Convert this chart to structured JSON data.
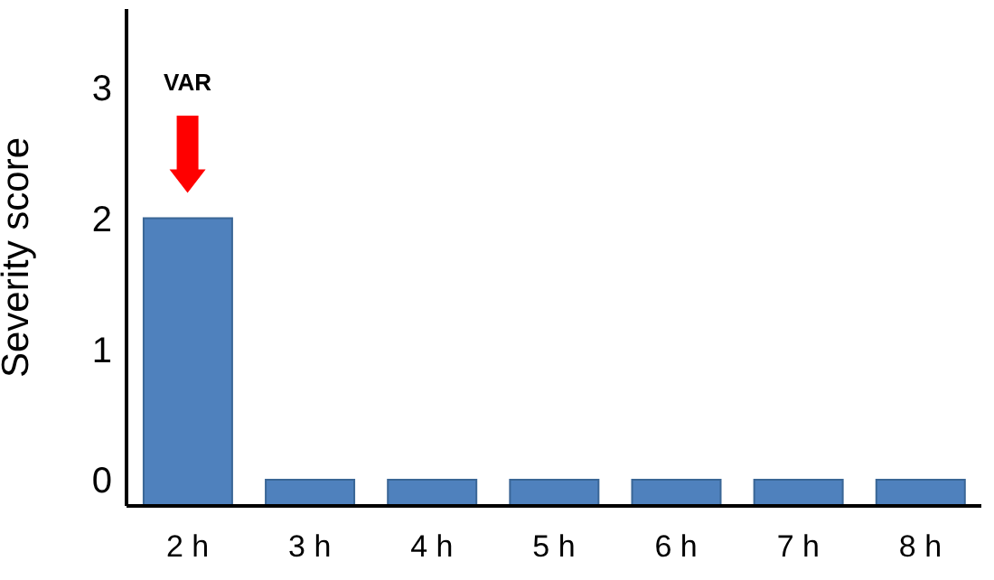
{
  "chart_data": {
    "type": "bar",
    "ylabel": "Severity score",
    "categories": [
      "2 h",
      "3 h",
      "4 h",
      "5 h",
      "6 h",
      "7 h",
      "8 h"
    ],
    "base": [
      -0.2,
      -0.2,
      -0.2,
      -0.2,
      -0.2,
      -0.2,
      -0.2
    ],
    "values": [
      2.2,
      0.2,
      0.2,
      0.2,
      0.2,
      0.2,
      0.2
    ],
    "color": "#4f81bd",
    "ylim": [
      -0.2,
      3.6
    ],
    "yticks": [
      0,
      1,
      2,
      3
    ],
    "annotations": [
      "VAR"
    ]
  }
}
